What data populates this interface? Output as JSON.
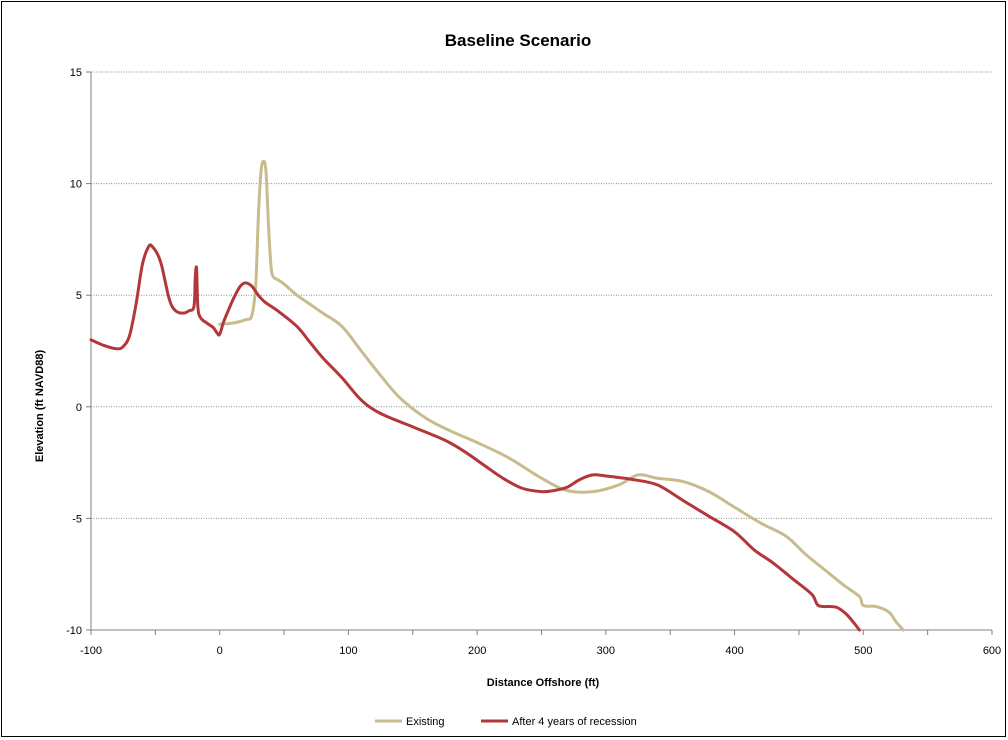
{
  "chart_data": {
    "type": "line",
    "title": "Baseline Scenario",
    "xlabel": "Distance Offshore (ft)",
    "ylabel": "Elevation (ft NAVD88)",
    "xlim": [
      -100,
      600
    ],
    "ylim": [
      -10,
      15
    ],
    "xticks": [
      "-100",
      "0",
      "100",
      "200",
      "300",
      "400",
      "500",
      "600"
    ],
    "yticks": [
      "-10",
      "-5",
      "0",
      "5",
      "10",
      "15"
    ],
    "grid": "horizontal",
    "legend_position": "bottom",
    "series": [
      {
        "name": "Existing",
        "color": "#C8BC8F",
        "x": [
          0,
          10,
          20,
          25,
          28,
          30,
          32,
          34,
          36,
          38,
          40,
          42,
          45,
          50,
          60,
          70,
          80,
          95,
          110,
          125,
          140,
          160,
          180,
          200,
          225,
          250,
          270,
          290,
          310,
          325,
          340,
          360,
          380,
          400,
          420,
          440,
          455,
          470,
          485,
          497,
          500,
          510,
          520,
          525,
          531
        ],
        "y": [
          3.7,
          3.75,
          3.9,
          4.1,
          5.5,
          8.5,
          10.5,
          11.0,
          10.5,
          8.0,
          6.2,
          5.8,
          5.7,
          5.5,
          5.0,
          4.6,
          4.2,
          3.6,
          2.5,
          1.4,
          0.4,
          -0.5,
          -1.1,
          -1.6,
          -2.3,
          -3.2,
          -3.75,
          -3.8,
          -3.5,
          -3.05,
          -3.2,
          -3.35,
          -3.8,
          -4.5,
          -5.2,
          -5.8,
          -6.6,
          -7.3,
          -8.0,
          -8.5,
          -8.9,
          -8.95,
          -9.2,
          -9.6,
          -10.0
        ]
      },
      {
        "name": "After 4 years of recession",
        "color": "#B3373A",
        "x": [
          -100,
          -90,
          -80,
          -75,
          -70,
          -65,
          -60,
          -55,
          -52,
          -48,
          -45,
          -40,
          -37,
          -33,
          -28,
          -24,
          -20,
          -19,
          -18,
          -17,
          -15,
          -10,
          -5,
          -2,
          0,
          3,
          8,
          12,
          16,
          20,
          25,
          30,
          35,
          45,
          60,
          70,
          80,
          95,
          110,
          125,
          150,
          175,
          190,
          205,
          220,
          235,
          250,
          260,
          270,
          280,
          290,
          300,
          320,
          340,
          360,
          380,
          400,
          415,
          430,
          445,
          460,
          465,
          475,
          480,
          487,
          493,
          497
        ],
        "y": [
          3.0,
          2.75,
          2.6,
          2.7,
          3.2,
          4.6,
          6.4,
          7.2,
          7.15,
          6.8,
          6.3,
          5.0,
          4.5,
          4.25,
          4.2,
          4.3,
          4.5,
          5.8,
          6.2,
          4.5,
          4.0,
          3.75,
          3.55,
          3.3,
          3.25,
          3.8,
          4.5,
          5.0,
          5.4,
          5.55,
          5.4,
          5.0,
          4.7,
          4.3,
          3.6,
          2.9,
          2.2,
          1.3,
          0.3,
          -0.3,
          -0.9,
          -1.5,
          -2.0,
          -2.6,
          -3.2,
          -3.65,
          -3.8,
          -3.75,
          -3.6,
          -3.25,
          -3.05,
          -3.1,
          -3.25,
          -3.5,
          -4.2,
          -4.9,
          -5.6,
          -6.4,
          -7.0,
          -7.7,
          -8.4,
          -8.9,
          -8.95,
          -9.0,
          -9.3,
          -9.7,
          -10.0
        ]
      }
    ]
  }
}
